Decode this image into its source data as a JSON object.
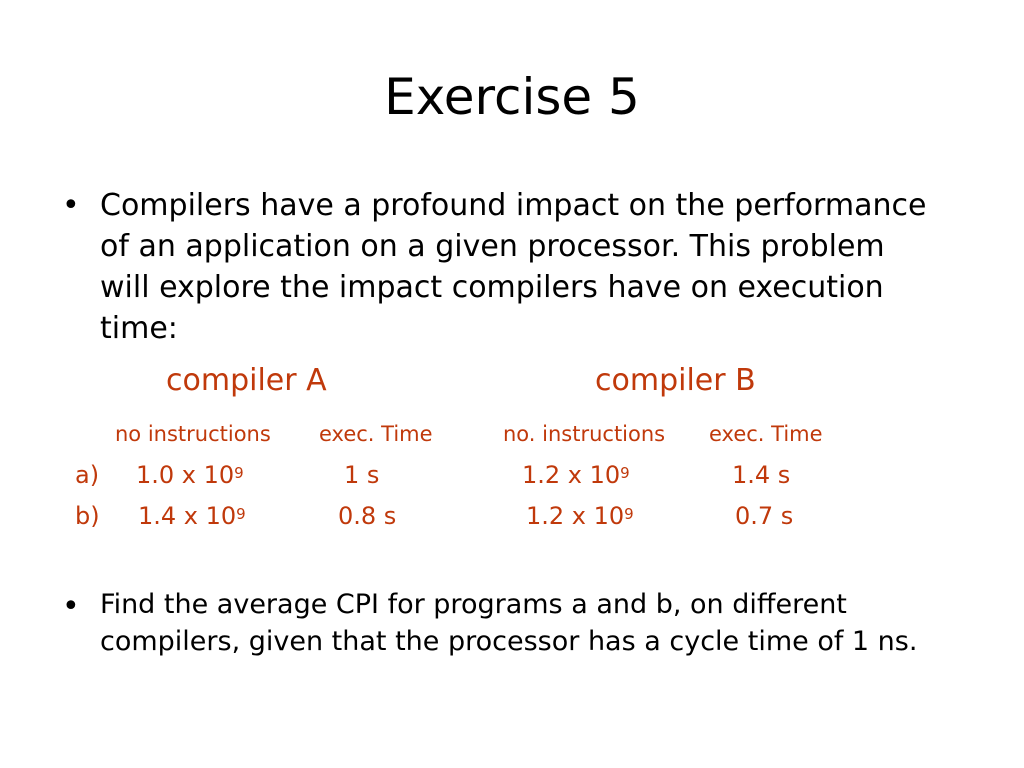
{
  "slide": {
    "title": "Exercise 5",
    "bullets": [
      {
        "marker": "•",
        "lines": [
          "Compilers have a profound impact on the performance",
          "of an application on a given processor. This problem",
          "will explore the impact compilers have on execution",
          "time:"
        ]
      },
      {
        "marker": "•",
        "lines": [
          "Find the average CPI for programs a and b, on different",
          "compilers, given that the processor has a cycle time of 1 ns."
        ]
      }
    ],
    "table": {
      "compilers": [
        "compiler A",
        "compiler B"
      ],
      "headers": [
        "no instructions",
        "exec. Time",
        "no. instructions",
        "exec. Time"
      ],
      "rows": [
        {
          "label": "a)",
          "a_instr_base": "1.0 x 10",
          "a_instr_exp": "9",
          "a_time": "1 s",
          "b_instr_base": "1.2 x 10",
          "b_instr_exp": "9",
          "b_time": "1.4 s"
        },
        {
          "label": "b)",
          "a_instr_base": "1.4 x 10",
          "a_instr_exp": "9",
          "a_time": "0.8 s",
          "b_instr_base": "1.2 x 10",
          "b_instr_exp": "9",
          "b_time": "0.7 s"
        }
      ]
    },
    "colors": {
      "text": "#000000",
      "accent": "#c0390b",
      "background": "#ffffff"
    }
  }
}
